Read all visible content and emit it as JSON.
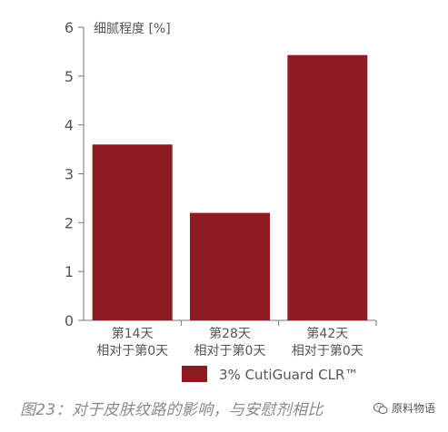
{
  "chart_data": {
    "type": "bar",
    "ylabel": "细腻程度 [%]",
    "ylim": [
      0,
      6
    ],
    "yticks": [
      0,
      1,
      2,
      3,
      4,
      5,
      6
    ],
    "categories": [
      [
        "第14天",
        "相对于第0天"
      ],
      [
        "第28天",
        "相对于第0天"
      ],
      [
        "第42天",
        "相对于第0天"
      ]
    ],
    "series": [
      {
        "name": "3% CutiGuard CLR™",
        "values": [
          3.6,
          2.2,
          5.43
        ],
        "color": "#8e1b21"
      }
    ],
    "grid": false,
    "legend": "bottom-right"
  },
  "caption": "图23：对于皮肤纹路的影响，与安慰剂相比",
  "watermark": {
    "text": "原料物语",
    "icon": "wechat-icon"
  }
}
